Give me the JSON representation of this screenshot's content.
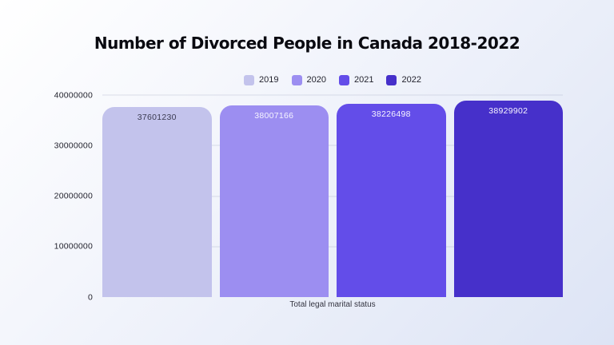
{
  "page": {
    "background_gradient_start": "#ffffff",
    "background_gradient_end": "#dde4f5"
  },
  "chart_data": {
    "type": "bar",
    "title": "Number of Divorced People in Canada 2018-2022",
    "xlabel": "Total legal marital status",
    "ylabel": "",
    "ylim": [
      0,
      40000000
    ],
    "yticks": [
      0,
      10000000,
      20000000,
      30000000,
      40000000
    ],
    "categories": [
      "2019",
      "2020",
      "2021",
      "2022"
    ],
    "series": [
      {
        "name": "2019",
        "value": 37601230,
        "color": "#c3c3ec",
        "value_label_color": "#3b3b52"
      },
      {
        "name": "2020",
        "value": 38007166,
        "color": "#9c8ef1",
        "value_label_color": "#f7f5ff"
      },
      {
        "name": "2021",
        "value": 38226498,
        "color": "#634de9",
        "value_label_color": "#f7f5ff"
      },
      {
        "name": "2022",
        "value": 38929902,
        "color": "#4630ca",
        "value_label_color": "#f7f5ff"
      }
    ],
    "legend_position": "top-center",
    "grid": true
  }
}
